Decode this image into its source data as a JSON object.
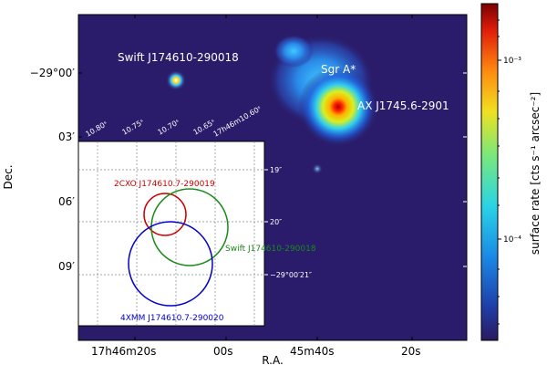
{
  "axes": {
    "xlabel": "R.A.",
    "ylabel": "Dec.",
    "x_ticks": [
      "17h46m20s",
      "00s",
      "45m40s",
      "20s"
    ],
    "y_ticks": [
      "−29°00′",
      "03′",
      "06′",
      "09′"
    ]
  },
  "colorbar": {
    "label": "surface rate [cts s⁻¹ arcsec⁻²]",
    "ticks": [
      "10⁻³",
      "10⁻⁴"
    ],
    "scale": "log",
    "colormap": "jet"
  },
  "sources": {
    "swift_label": "Swift J174610-290018",
    "sgra_label": "Sgr A*",
    "ax_label": "AX J1745.6-2901"
  },
  "inset": {
    "top_ticks": [
      "10.80ˢ",
      "10.75ˢ",
      "10.70ˢ",
      "10.65ˢ",
      "17h46m10.60ˢ"
    ],
    "right_ticks": [
      "19″",
      "20″",
      "−29°00′21″"
    ],
    "circles": [
      {
        "name": "2CXO J174610.7-290019",
        "color": "#cc0000"
      },
      {
        "name": "Swift J174610-290018",
        "color": "#1a8a1a"
      },
      {
        "name": "4XMM J174610.7-290020",
        "color": "#0000cc"
      }
    ]
  }
}
